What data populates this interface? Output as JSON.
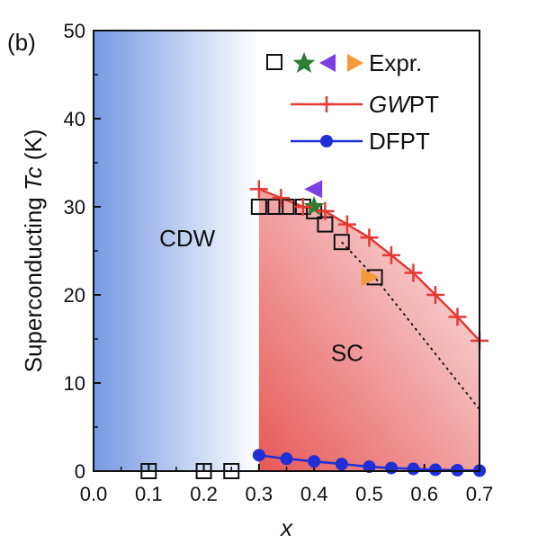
{
  "panel_label": "(b)",
  "chart_data": {
    "type": "scatter",
    "xlabel": "x",
    "ylabel": "Superconducting Tc (K)",
    "ylabel_parts": [
      "Superconducting ",
      "Tc",
      " (K)"
    ],
    "xlim": [
      0.0,
      0.7
    ],
    "ylim": [
      0,
      50
    ],
    "xticks": [
      "0.0",
      "0.1",
      "0.2",
      "0.3",
      "0.4",
      "0.5",
      "0.6",
      "0.7"
    ],
    "yticks": [
      "0",
      "10",
      "20",
      "30",
      "40",
      "50"
    ],
    "grid": false,
    "legend_position": "top-right",
    "legend": {
      "expr": "Expr.",
      "gwpt": "GWPT",
      "gwpt_parts": [
        "GW",
        "PT"
      ],
      "dfpt": "DFPT"
    },
    "regions": {
      "cdw": {
        "label": "CDW",
        "x_range": [
          0.0,
          0.3
        ],
        "color": "#6f94e0"
      },
      "sc": {
        "label": "SC",
        "x_start": 0.3,
        "color": "#e5504f"
      }
    },
    "series": [
      {
        "name": "Expr.",
        "marker": "open-square",
        "color": "#111111",
        "points": [
          [
            0.1,
            0
          ],
          [
            0.2,
            0
          ],
          [
            0.25,
            0
          ],
          [
            0.3,
            30
          ],
          [
            0.33,
            30
          ],
          [
            0.35,
            30
          ],
          [
            0.38,
            30
          ],
          [
            0.4,
            29.5
          ],
          [
            0.42,
            28
          ],
          [
            0.45,
            26
          ],
          [
            0.51,
            22
          ]
        ]
      },
      {
        "name": "Expr. (star)",
        "marker": "star",
        "color": "#2e7d32",
        "points": [
          [
            0.4,
            30
          ]
        ]
      },
      {
        "name": "Expr. (left triangle)",
        "marker": "triangle-left",
        "color": "#7b3fe4",
        "points": [
          [
            0.4,
            32
          ]
        ]
      },
      {
        "name": "Expr. (right triangle)",
        "marker": "triangle-right",
        "color": "#f39a3a",
        "points": [
          [
            0.5,
            22
          ]
        ]
      },
      {
        "name": "GWPT",
        "marker": "plus",
        "color": "#e53935",
        "points": [
          [
            0.3,
            32
          ],
          [
            0.34,
            31
          ],
          [
            0.38,
            30
          ],
          [
            0.42,
            29.5
          ],
          [
            0.46,
            28
          ],
          [
            0.5,
            26.5
          ],
          [
            0.54,
            24.5
          ],
          [
            0.58,
            22.5
          ],
          [
            0.62,
            20
          ],
          [
            0.66,
            17.5
          ],
          [
            0.7,
            14.8
          ]
        ]
      },
      {
        "name": "DFPT",
        "marker": "filled-circle",
        "color": "#1f2fd6",
        "points": [
          [
            0.3,
            1.8
          ],
          [
            0.35,
            1.4
          ],
          [
            0.4,
            1.1
          ],
          [
            0.45,
            0.8
          ],
          [
            0.5,
            0.5
          ],
          [
            0.54,
            0.35
          ],
          [
            0.58,
            0.25
          ],
          [
            0.62,
            0.15
          ],
          [
            0.66,
            0.1
          ],
          [
            0.7,
            0.05
          ]
        ]
      }
    ],
    "guide_line": {
      "style": "dotted",
      "color": "#111111",
      "points": [
        [
          0.45,
          26
        ],
        [
          0.51,
          22
        ],
        [
          0.7,
          7
        ]
      ]
    }
  }
}
